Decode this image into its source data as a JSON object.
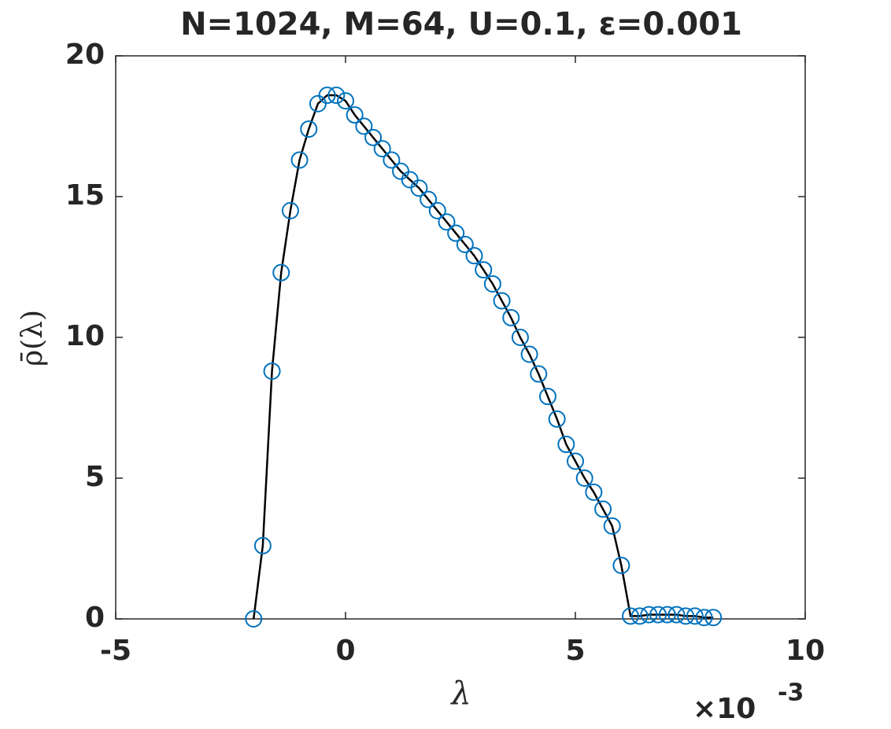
{
  "chart_data": {
    "type": "line",
    "title": "N=1024, M=64, U=0.1, ε=0.001",
    "x_label": "λ",
    "y_label": "ρ̄(λ)",
    "x_multiplier": "×10",
    "x_multiplier_exponent": "-3",
    "x": [
      -2.0,
      -1.8,
      -1.6,
      -1.4,
      -1.2,
      -1.0,
      -0.8,
      -0.6,
      -0.4,
      -0.2,
      0.0,
      0.2,
      0.4,
      0.6,
      0.8,
      1.0,
      1.2,
      1.4,
      1.6,
      1.8,
      2.0,
      2.2,
      2.4,
      2.6,
      2.8,
      3.0,
      3.2,
      3.4,
      3.6,
      3.8,
      4.0,
      4.2,
      4.4,
      4.6,
      4.8,
      5.0,
      5.2,
      5.4,
      5.6,
      5.8,
      6.0,
      6.2,
      6.4,
      6.6,
      6.8,
      7.0,
      7.2,
      7.4,
      7.6,
      7.8,
      8.0
    ],
    "values": [
      0.0,
      2.6,
      8.8,
      12.3,
      14.5,
      16.3,
      17.4,
      18.3,
      18.6,
      18.6,
      18.4,
      17.9,
      17.5,
      17.1,
      16.7,
      16.3,
      15.9,
      15.6,
      15.3,
      14.9,
      14.5,
      14.1,
      13.7,
      13.3,
      12.9,
      12.4,
      11.9,
      11.3,
      10.7,
      10.0,
      9.4,
      8.7,
      7.9,
      7.1,
      6.2,
      5.6,
      5.0,
      4.5,
      3.9,
      3.3,
      1.9,
      0.1,
      0.1,
      0.15,
      0.15,
      0.15,
      0.15,
      0.1,
      0.1,
      0.05,
      0.05
    ],
    "marker_color": "#0072bd",
    "line_color": "#000000",
    "xlim": [
      -5,
      10
    ],
    "xticks": [
      -5,
      0,
      5,
      10
    ],
    "ylim": [
      0,
      20
    ],
    "yticks": [
      0,
      5,
      10,
      15,
      20
    ]
  }
}
